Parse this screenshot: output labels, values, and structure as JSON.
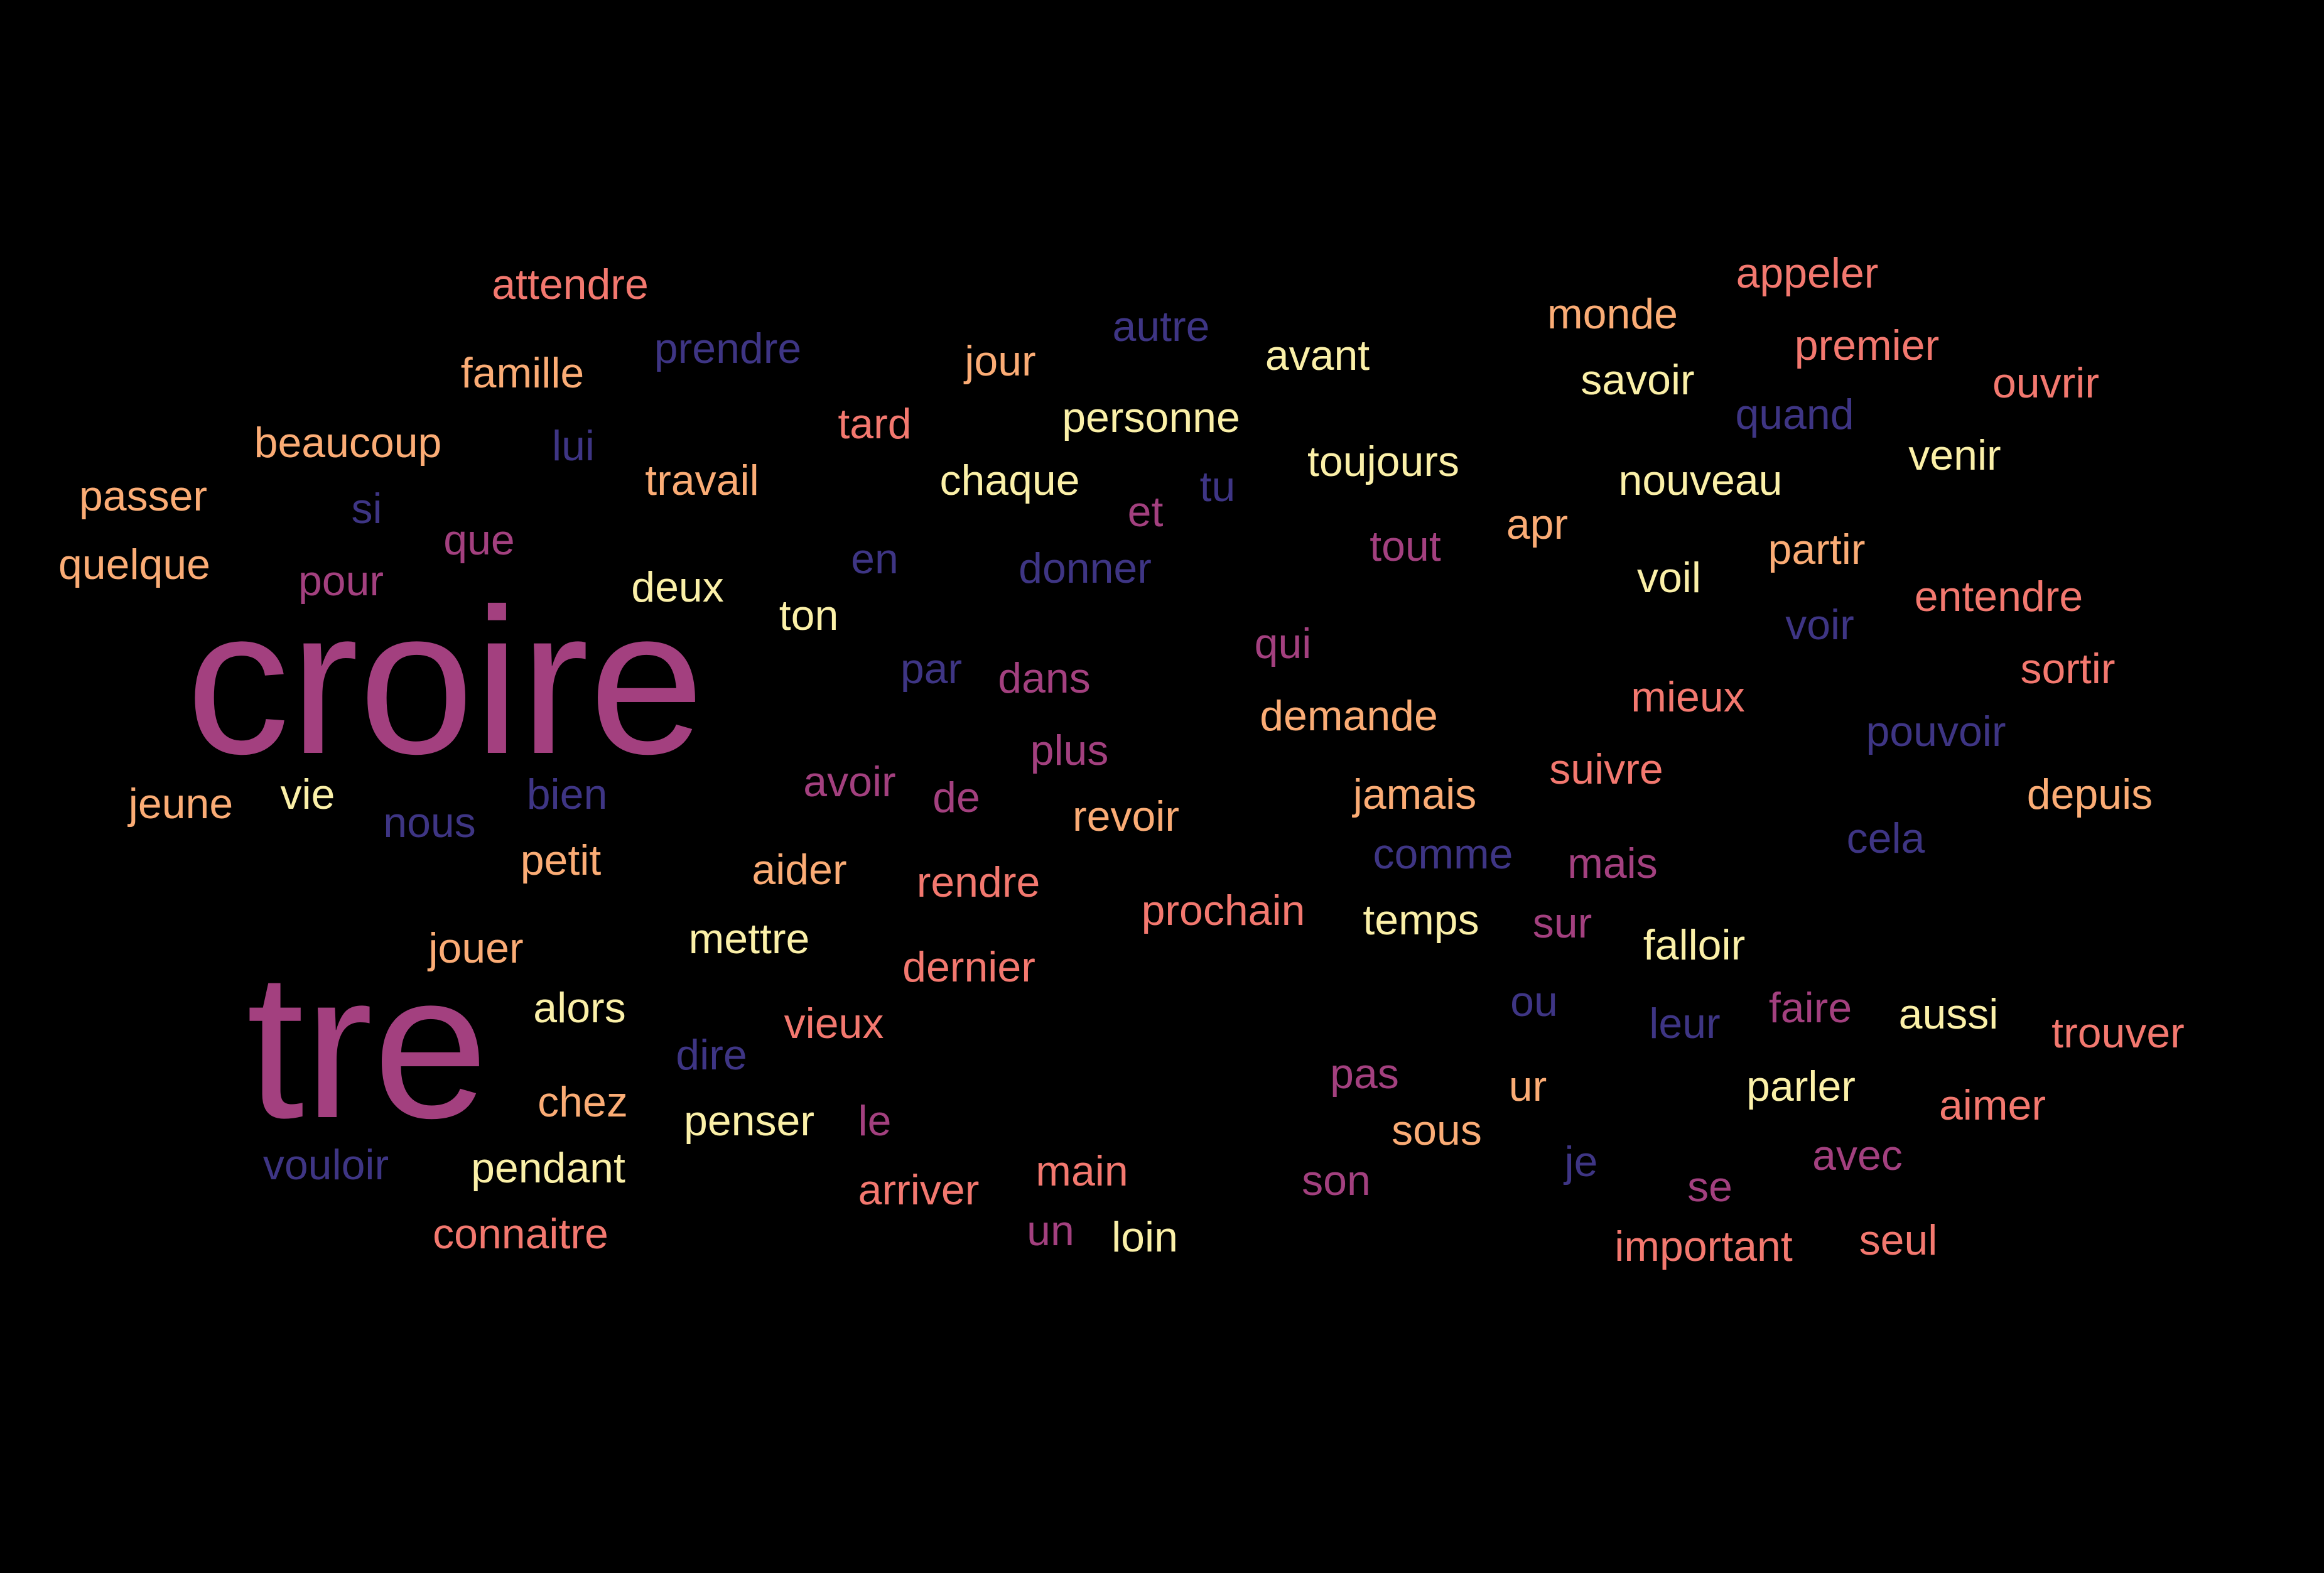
{
  "colors": {
    "background": "#000000",
    "magenta": "#a3407f",
    "indigo": "#3e3584",
    "coral": "#f3786f",
    "peach": "#fbac75",
    "yellow": "#fbf0a8"
  },
  "words": [
    "croire",
    "tre",
    "attendre",
    "famille",
    "prendre",
    "beaucoup",
    "lui",
    "passer",
    "si",
    "quelque",
    "pour",
    "que",
    "travail",
    "tard",
    "jour",
    "autre",
    "avant",
    "personne",
    "chaque",
    "et",
    "tu",
    "toujours",
    "monde",
    "appeler",
    "savoir",
    "premier",
    "quand",
    "ouvrir",
    "venir",
    "nouveau",
    "apr",
    "tout",
    "deux",
    "ton",
    "en",
    "donner",
    "voil",
    "partir",
    "entendre",
    "voir",
    "sortir",
    "qui",
    "par",
    "dans",
    "demande",
    "mieux",
    "pouvoir",
    "depuis",
    "plus",
    "avoir",
    "de",
    "suivre",
    "jamais",
    "revoir",
    "jeune",
    "vie",
    "nous",
    "bien",
    "petit",
    "aider",
    "rendre",
    "comme",
    "mais",
    "cela",
    "prochain",
    "temps",
    "sur",
    "falloir",
    "jouer",
    "mettre",
    "dernier",
    "alors",
    "vieux",
    "dire",
    "ou",
    "leur",
    "faire",
    "aussi",
    "trouver",
    "chez",
    "penser",
    "le",
    "pas",
    "ur",
    "parler",
    "aimer",
    "vouloir",
    "pendant",
    "arriver",
    "main",
    "sous",
    "son",
    "je",
    "se",
    "avec",
    "connaitre",
    "un",
    "loin",
    "important",
    "seul"
  ]
}
